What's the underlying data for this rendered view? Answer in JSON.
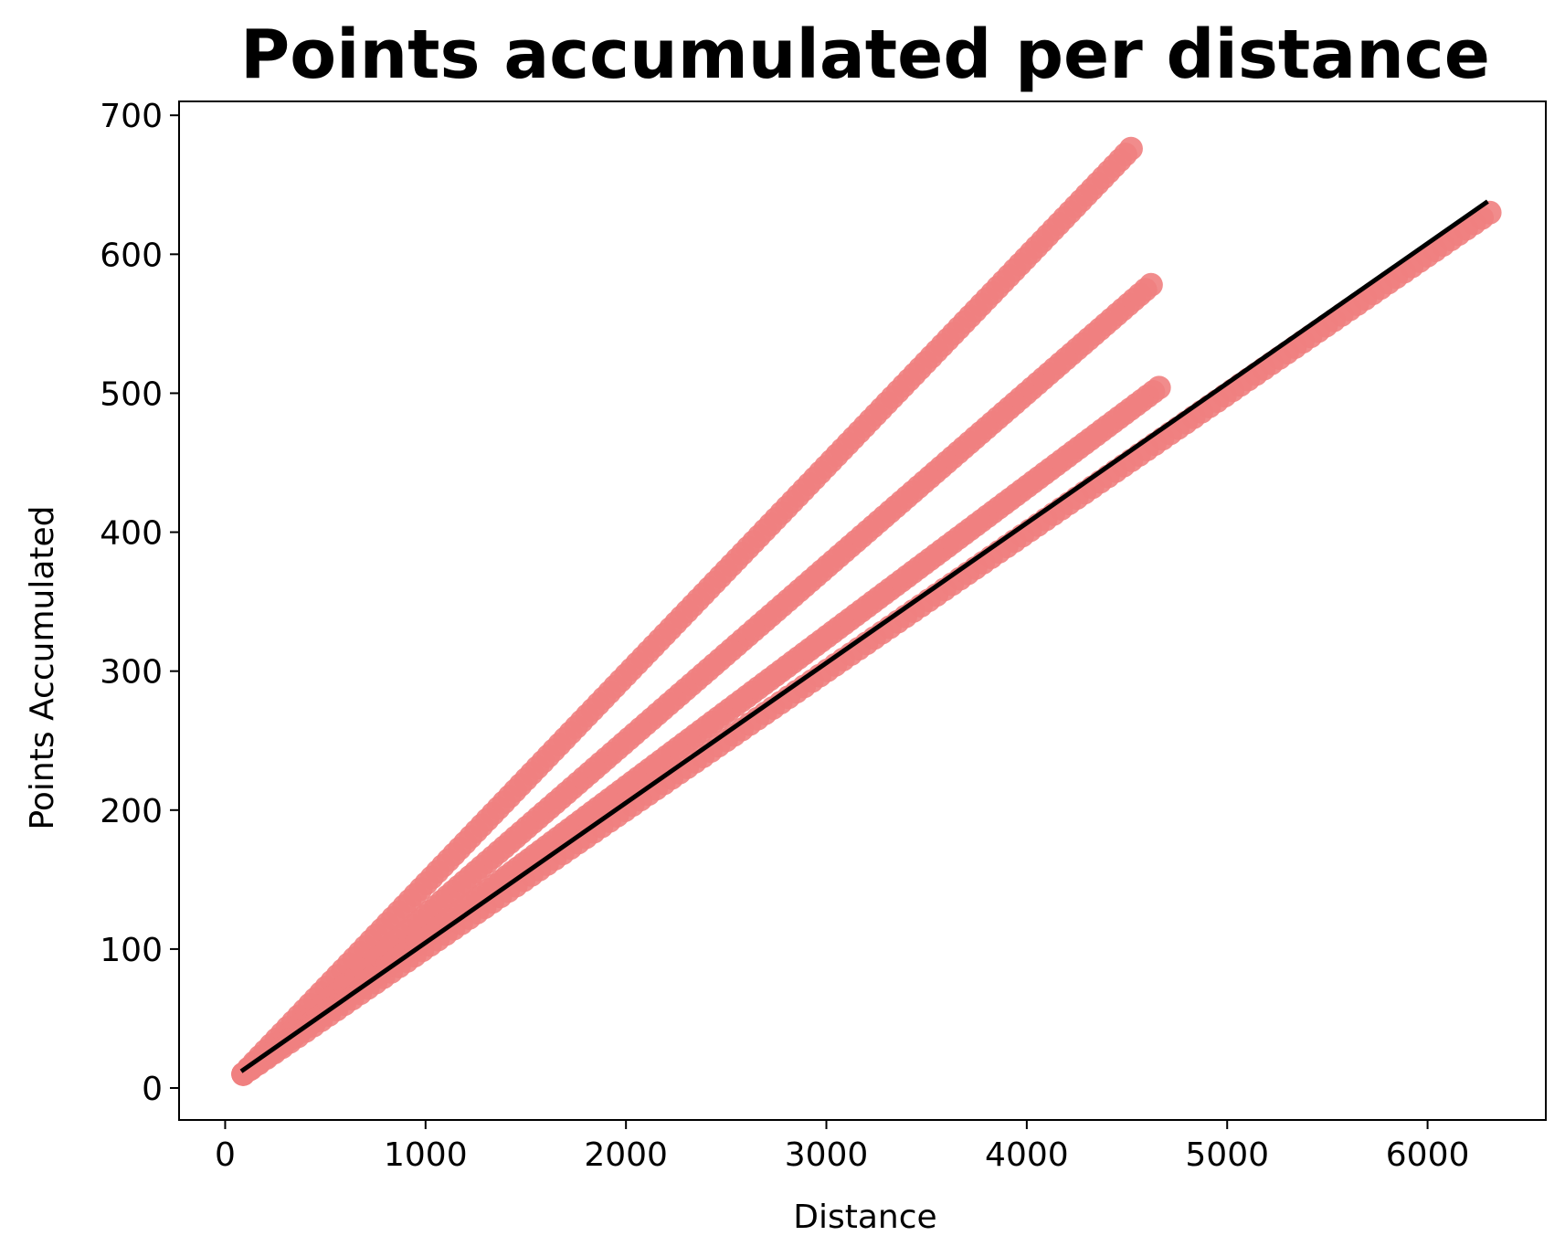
{
  "chart_data": {
    "type": "scatter",
    "title": "Points accumulated per distance",
    "xlabel": "Distance",
    "ylabel": "Points Accumulated",
    "xlim": [
      -230,
      6590
    ],
    "ylim": [
      -23,
      710
    ],
    "xticks": [
      0,
      1000,
      2000,
      3000,
      4000,
      5000,
      6000
    ],
    "yticks": [
      0,
      100,
      200,
      300,
      400,
      500,
      600,
      700
    ],
    "grid": false,
    "colors": {
      "points": "#f08080",
      "fit_line": "#000000"
    },
    "series": [
      {
        "x_start": 90,
        "y_start": 10,
        "x_end": 4520,
        "y_end": 676
      },
      {
        "x_start": 90,
        "y_start": 10,
        "x_end": 4620,
        "y_end": 578
      },
      {
        "x_start": 90,
        "y_start": 10,
        "x_end": 4660,
        "y_end": 504
      },
      {
        "x_start": 90,
        "y_start": 10,
        "x_end": 6310,
        "y_end": 630
      }
    ],
    "fit_line": {
      "x": [
        80,
        6300
      ],
      "y": [
        12,
        638
      ]
    }
  }
}
